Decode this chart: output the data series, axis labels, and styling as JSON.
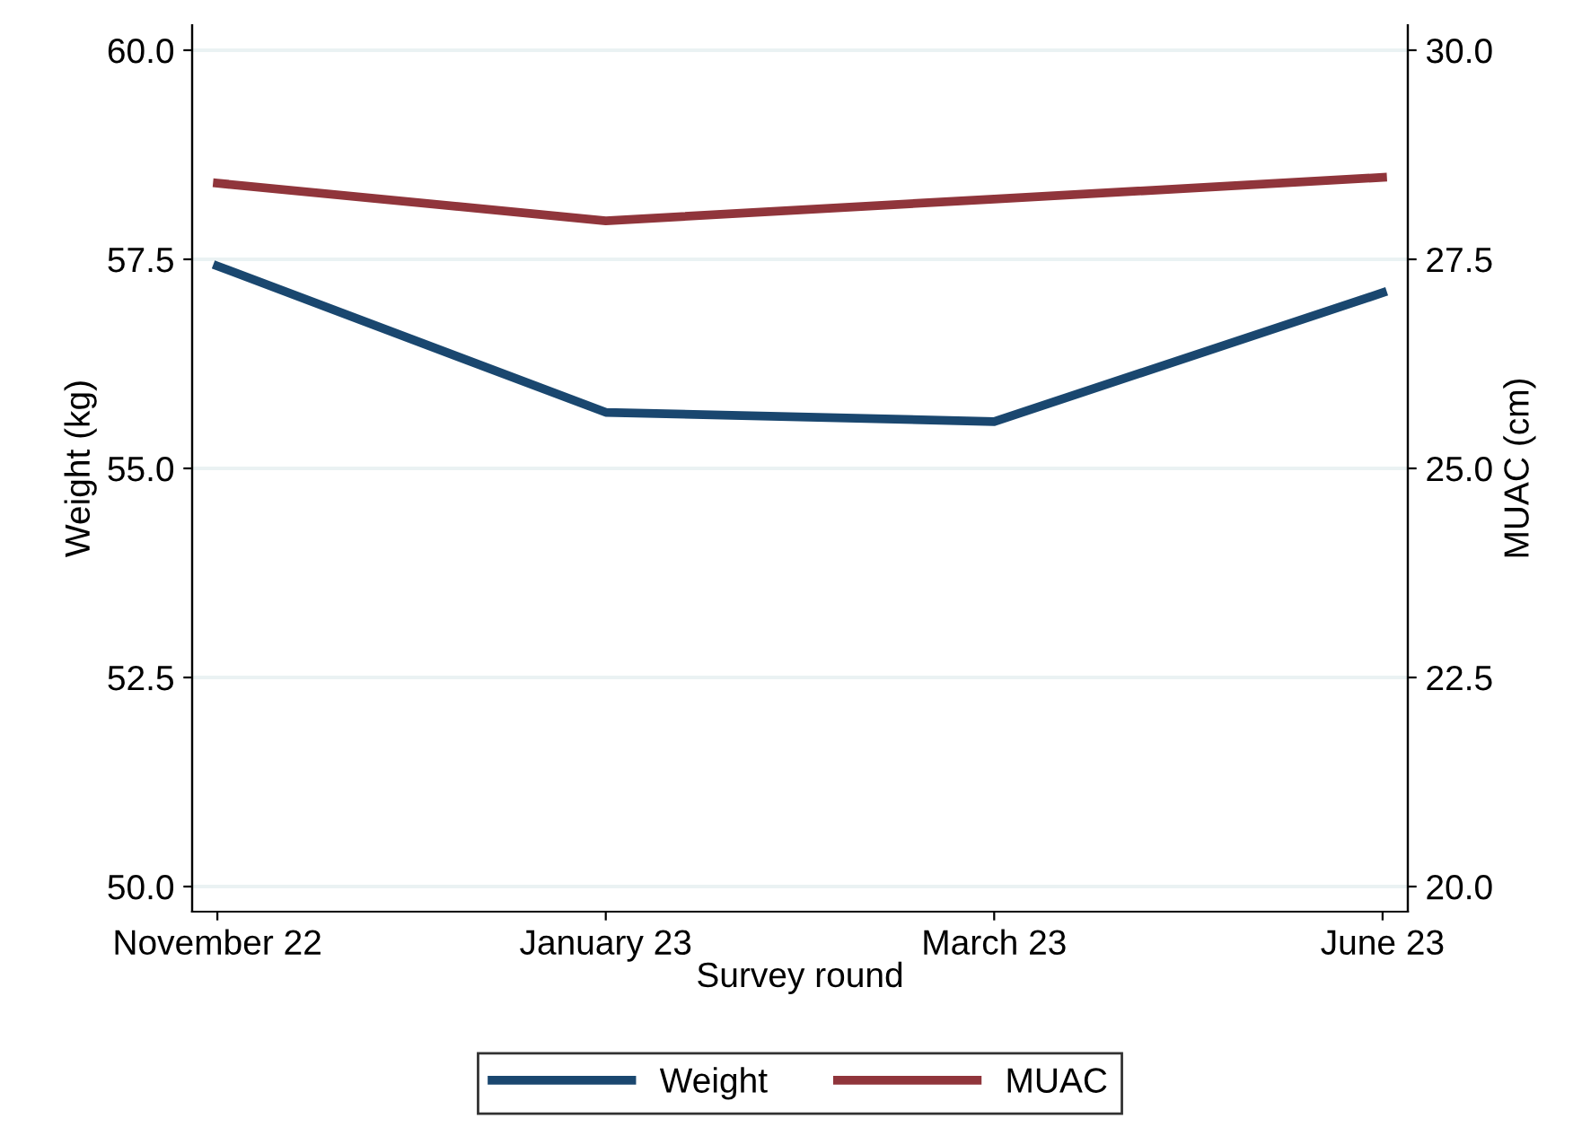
{
  "chart_data": {
    "type": "line",
    "xlabel": "Survey round",
    "ylabel": "Weight (kg)",
    "y2label": "MUAC (cm)",
    "categories": [
      "November 22",
      "January 23",
      "March 23",
      "June 23"
    ],
    "series": [
      {
        "name": "Weight",
        "color": "#1a476f",
        "values": [
          57.42,
          55.67,
          55.56,
          57.1
        ]
      },
      {
        "name": "MUAC",
        "color": "#90353b",
        "axis": "y2",
        "values": [
          28.41,
          27.96,
          28.22,
          28.48
        ]
      }
    ],
    "ylim": [
      49.7,
      60.3
    ],
    "yticks": [
      {
        "value": 50,
        "label": "50.0"
      },
      {
        "value": 52.5,
        "label": "52.5"
      },
      {
        "value": 55,
        "label": "55.0"
      },
      {
        "value": 57.5,
        "label": "57.5"
      },
      {
        "value": 60,
        "label": "60.0"
      }
    ],
    "y2lim": [
      19.7,
      30.3
    ],
    "y2ticks": [
      {
        "value": 20,
        "label": "20.0"
      },
      {
        "value": 22.5,
        "label": "22.5"
      },
      {
        "value": 25,
        "label": "25.0"
      },
      {
        "value": 27.5,
        "label": "27.5"
      },
      {
        "value": 30,
        "label": "30.0"
      }
    ],
    "grid": "y",
    "legend": "bottom",
    "line_style": "solid",
    "marker": "none"
  }
}
